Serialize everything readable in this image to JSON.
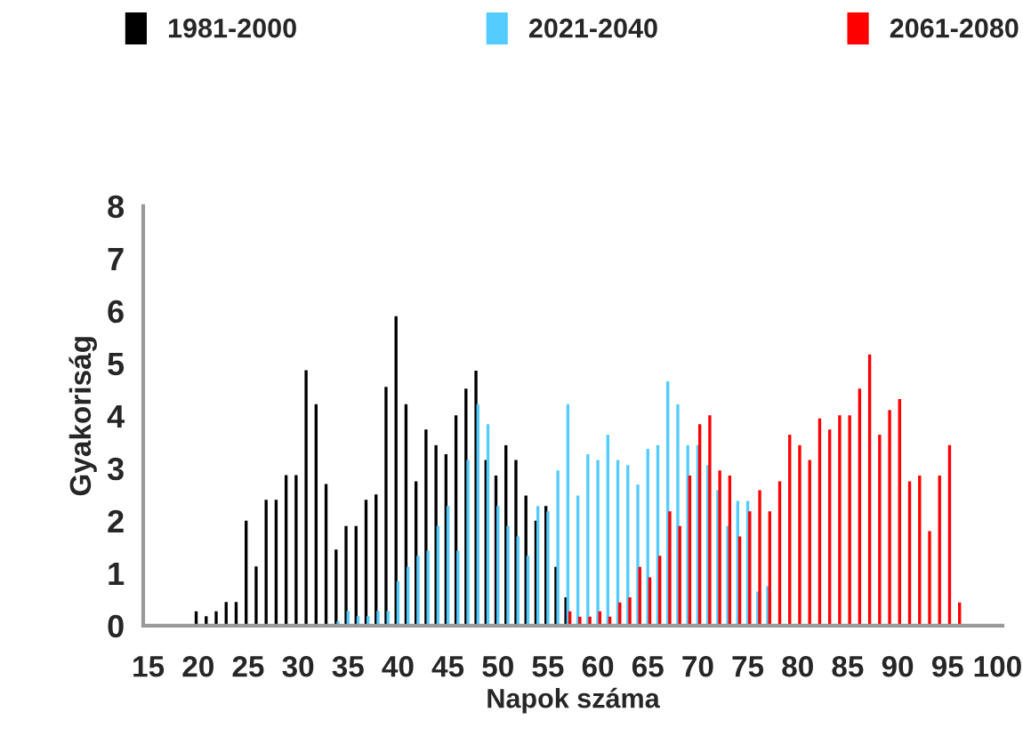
{
  "chart_data": {
    "type": "bar",
    "xlabel": "Napok száma",
    "ylabel": "Gyakoriság",
    "categories": [
      "15",
      null,
      null,
      null,
      null,
      "20",
      null,
      null,
      null,
      null,
      "25",
      null,
      null,
      null,
      null,
      "30",
      null,
      null,
      null,
      null,
      "35",
      null,
      null,
      null,
      null,
      "40",
      null,
      null,
      null,
      null,
      "45",
      null,
      null,
      null,
      null,
      "50",
      null,
      null,
      null,
      null,
      "55",
      null,
      null,
      null,
      null,
      "60",
      null,
      null,
      null,
      null,
      "65",
      null,
      null,
      null,
      null,
      "70",
      null,
      null,
      null,
      null,
      "75",
      null,
      null,
      null,
      null,
      "80",
      null,
      null,
      null,
      null,
      "85",
      null,
      null,
      null,
      null,
      "90",
      null,
      null,
      null,
      null,
      "95",
      null,
      null,
      null,
      null,
      "100"
    ],
    "series": [
      {
        "name": "1981-2000",
        "color": "#000000",
        "values": [
          null,
          null,
          null,
          null,
          null,
          0.27,
          0.18,
          0.27,
          0.45,
          0.45,
          2.0,
          1.13,
          2.4,
          2.4,
          2.87,
          2.87,
          4.87,
          4.22,
          2.7,
          1.45,
          1.9,
          1.9,
          2.4,
          2.5,
          4.55,
          5.9,
          4.22,
          2.75,
          3.74,
          3.44,
          3.27,
          4.01,
          4.52,
          4.86,
          3.16,
          2.86,
          3.44,
          3.16,
          2.48,
          2.0,
          2.28,
          1.12,
          0.54,
          null,
          null,
          null,
          null,
          null,
          null,
          null,
          null,
          null,
          null,
          null,
          null,
          null,
          null,
          null,
          null,
          null,
          null,
          null,
          null,
          null,
          null,
          null,
          null,
          null,
          null,
          null,
          null,
          null,
          null,
          null,
          null,
          null,
          null,
          null,
          null,
          null,
          null,
          null,
          null,
          null,
          null,
          null
        ]
      },
      {
        "name": "2021-2040",
        "color": "#55ccff",
        "values": [
          null,
          null,
          null,
          null,
          null,
          null,
          null,
          null,
          null,
          null,
          null,
          null,
          null,
          null,
          null,
          null,
          null,
          null,
          null,
          0.08,
          0.28,
          0.18,
          0.18,
          0.28,
          0.28,
          0.85,
          1.12,
          1.33,
          1.43,
          1.9,
          2.28,
          1.43,
          3.16,
          4.22,
          3.84,
          2.28,
          1.9,
          1.7,
          1.33,
          2.28,
          2.18,
          2.96,
          4.22,
          2.48,
          3.27,
          3.16,
          3.64,
          3.16,
          3.06,
          2.69,
          3.37,
          3.44,
          4.66,
          4.22,
          3.44,
          3.44,
          3.06,
          2.58,
          1.9,
          2.38,
          2.38,
          0.65,
          0.75,
          null,
          null,
          null,
          null,
          null,
          null,
          null,
          null,
          null,
          null,
          null,
          null,
          null,
          null,
          null,
          null,
          null,
          null,
          null,
          null,
          null,
          null,
          null
        ]
      },
      {
        "name": "2061-2080",
        "color": "#ff0000",
        "values": [
          null,
          null,
          null,
          null,
          null,
          null,
          null,
          null,
          null,
          null,
          null,
          null,
          null,
          null,
          null,
          null,
          null,
          null,
          null,
          null,
          null,
          null,
          null,
          null,
          null,
          null,
          null,
          null,
          null,
          null,
          null,
          null,
          null,
          null,
          null,
          null,
          null,
          null,
          null,
          null,
          null,
          null,
          0.27,
          0.17,
          0.17,
          0.27,
          0.17,
          0.44,
          0.54,
          1.12,
          0.92,
          1.33,
          2.18,
          1.9,
          2.86,
          3.84,
          4.01,
          2.96,
          2.86,
          1.7,
          2.18,
          2.58,
          2.18,
          2.75,
          3.64,
          3.44,
          3.16,
          3.95,
          3.74,
          4.01,
          4.01,
          4.52,
          5.17,
          3.64,
          4.11,
          4.32,
          2.75,
          2.86,
          1.8,
          2.86,
          3.44,
          0.44,
          null,
          null,
          null,
          null
        ]
      }
    ],
    "ylim": [
      0,
      8
    ],
    "yticks": [
      0,
      1,
      2,
      3,
      4,
      5,
      6,
      7,
      8
    ],
    "grid": false,
    "legend": "top"
  }
}
